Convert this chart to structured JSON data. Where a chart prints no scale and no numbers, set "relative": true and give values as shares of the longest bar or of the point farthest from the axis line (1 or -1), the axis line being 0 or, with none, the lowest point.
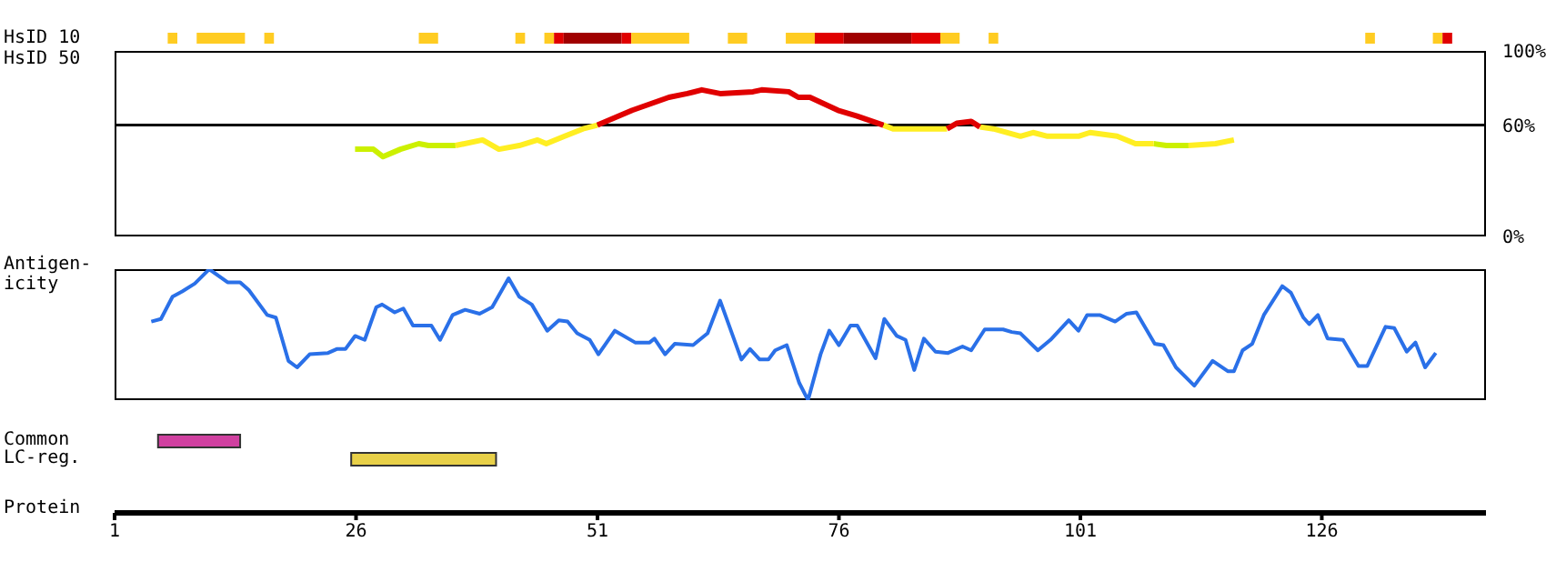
{
  "chart_data": [
    {
      "type": "line",
      "ylabel": "HsID 50",
      "xlim": [
        1,
        143
      ],
      "ylim": [
        0,
        100
      ],
      "yticks": [
        {
          "value": 0,
          "label": "0%"
        },
        {
          "value": 60,
          "label": "60%"
        },
        {
          "value": 100,
          "label": "100%"
        }
      ],
      "tick_labels": "y",
      "ref_lines": [
        {
          "axis": "y",
          "value": 60,
          "color": "#000000"
        }
      ],
      "x": [
        25.9,
        27.8,
        28.8,
        30.6,
        32.5,
        33.5,
        36.3,
        39.1,
        40.8,
        42.9,
        44.8,
        45.7,
        47.6,
        49.5,
        51,
        54.6,
        58.4,
        60.3,
        61.8,
        63.7,
        67.1,
        68,
        70.8,
        71.8,
        73,
        75.9,
        77.8,
        80.6,
        81.6,
        87.2,
        88.2,
        89.7,
        90.6,
        92,
        94.8,
        96.1,
        97.6,
        100.8,
        102,
        104.8,
        106.7,
        108.6,
        109.9,
        112.2,
        115,
        116.9
      ],
      "series": [
        {
          "color": "#ccf000",
          "values": [
            47,
            47,
            43,
            47,
            50,
            49,
            49,
            null,
            null,
            null,
            null,
            null,
            null,
            null,
            null,
            null,
            null,
            null,
            null,
            null,
            null,
            null,
            null,
            null,
            null,
            null,
            null,
            null,
            null,
            null,
            null,
            null,
            null,
            null,
            null,
            null,
            null,
            null,
            null,
            null,
            null,
            50,
            49,
            49,
            null,
            null
          ]
        },
        {
          "color": "#ffee22",
          "values": [
            null,
            null,
            null,
            null,
            null,
            null,
            49,
            52,
            47,
            49,
            52,
            50,
            54,
            58,
            60,
            null,
            null,
            null,
            null,
            null,
            null,
            null,
            null,
            null,
            null,
            null,
            null,
            60,
            58,
            58,
            null,
            null,
            59,
            58,
            54,
            56,
            54,
            54,
            56,
            54,
            50,
            50,
            null,
            49,
            50,
            52
          ]
        },
        {
          "color": "#e00000",
          "values": [
            null,
            null,
            null,
            null,
            null,
            null,
            null,
            null,
            null,
            null,
            null,
            null,
            null,
            null,
            60,
            68,
            75,
            77,
            79,
            77,
            78,
            79,
            78,
            75,
            75,
            68,
            65,
            60,
            null,
            58,
            61,
            62,
            59,
            null,
            null,
            null,
            null,
            null,
            null,
            null,
            null,
            null,
            null,
            null,
            null,
            null
          ]
        }
      ]
    },
    {
      "type": "line",
      "ylabel": "Antigen-\nicity",
      "relative": true,
      "xlim": [
        1,
        143
      ],
      "tick_labels": false,
      "x": [
        4.8,
        5.8,
        7.0,
        8.0,
        9.3,
        10.8,
        12.7,
        14.0,
        14.9,
        16.8,
        17.7,
        19.0,
        19.9,
        21.2,
        23.1,
        24.0,
        24.9,
        25.9,
        26.9,
        28.1,
        28.7,
        30.0,
        30.9,
        31.9,
        33.8,
        34.7,
        36.0,
        37.3,
        38.8,
        40.1,
        41.8,
        42.9,
        44.2,
        45.8,
        47.0,
        47.9,
        48.9,
        50.2,
        51.1,
        52.8,
        54.9,
        56.4,
        56.9,
        58.0,
        59.0,
        60.9,
        62.4,
        63.7,
        65.9,
        66.8,
        67.8,
        68.7,
        69.4,
        70.6,
        71.9,
        72.8,
        74.1,
        75.0,
        76.0,
        77.2,
        77.9,
        79.8,
        80.7,
        82.0,
        82.9,
        83.8,
        84.8,
        86.0,
        87.3,
        88.8,
        89.7,
        91.1,
        93.0,
        93.9,
        94.8,
        96.6,
        97.9,
        99.8,
        100.8,
        101.7,
        103.0,
        104.6,
        105.8,
        106.8,
        108.7,
        109.6,
        110.9,
        112.8,
        114.7,
        116.3,
        116.9,
        117.8,
        118.8,
        120.0,
        121.9,
        122.8,
        124.1,
        124.7,
        125.6,
        126.6,
        128.2,
        129.8,
        130.7,
        132.6,
        133.5,
        134.8,
        135.7,
        136.7,
        137.8
      ],
      "series": [
        {
          "color": "#2a70e8",
          "values": [
            0.6,
            0.62,
            0.79,
            0.83,
            0.89,
            1.0,
            0.9,
            0.9,
            0.84,
            0.65,
            0.63,
            0.3,
            0.25,
            0.35,
            0.36,
            0.39,
            0.39,
            0.49,
            0.46,
            0.71,
            0.73,
            0.67,
            0.7,
            0.57,
            0.57,
            0.46,
            0.65,
            0.69,
            0.66,
            0.71,
            0.93,
            0.79,
            0.73,
            0.53,
            0.61,
            0.6,
            0.51,
            0.46,
            0.35,
            0.53,
            0.44,
            0.44,
            0.47,
            0.35,
            0.43,
            0.42,
            0.51,
            0.76,
            0.31,
            0.39,
            0.31,
            0.31,
            0.38,
            0.42,
            0.13,
            0,
            0.35,
            0.53,
            0.42,
            0.57,
            0.57,
            0.32,
            0.62,
            0.49,
            0.46,
            0.23,
            0.47,
            0.37,
            0.36,
            0.41,
            0.38,
            0.54,
            0.54,
            0.52,
            0.51,
            0.38,
            0.46,
            0.61,
            0.53,
            0.65,
            0.65,
            0.6,
            0.66,
            0.67,
            0.43,
            0.42,
            0.25,
            0.11,
            0.3,
            0.22,
            0.22,
            0.38,
            0.43,
            0.65,
            0.87,
            0.82,
            0.63,
            0.58,
            0.65,
            0.47,
            0.46,
            0.26,
            0.26,
            0.56,
            0.55,
            0.37,
            0.44,
            0.25,
            0.36
          ]
        }
      ]
    },
    {
      "type": "bar",
      "orientation": "horizontal",
      "categories": [
        "HsID 10",
        "Common",
        "LC-reg."
      ],
      "xlabel": "Protein",
      "xlim": [
        1,
        143
      ],
      "xticks": [
        1,
        26,
        51,
        76,
        101,
        126
      ],
      "series": [
        {
          "color": "#ffcc22",
          "base": [
            6.5,
            null,
            null
          ],
          "values": [
            1,
            null,
            null
          ]
        },
        {
          "color": "#ffcc22",
          "base": [
            9.5,
            null,
            null
          ],
          "values": [
            5,
            null,
            null
          ]
        },
        {
          "color": "#ffcc22",
          "base": [
            16.5,
            null,
            null
          ],
          "values": [
            1,
            null,
            null
          ]
        },
        {
          "color": "#ffcc22",
          "base": [
            32.5,
            null,
            null
          ],
          "values": [
            2,
            null,
            null
          ]
        },
        {
          "color": "#ffcc22",
          "base": [
            42.5,
            null,
            null
          ],
          "values": [
            1,
            null,
            null
          ]
        },
        {
          "color": "#ffcc22",
          "base": [
            45.5,
            null,
            null
          ],
          "values": [
            1,
            null,
            null
          ]
        },
        {
          "color": "#e00000",
          "base": [
            46.5,
            null,
            null
          ],
          "values": [
            1,
            null,
            null
          ]
        },
        {
          "color": "#a00000",
          "base": [
            47.5,
            null,
            null
          ],
          "values": [
            6,
            null,
            null
          ]
        },
        {
          "color": "#e00000",
          "base": [
            53.5,
            null,
            null
          ],
          "values": [
            1,
            null,
            null
          ]
        },
        {
          "color": "#ffcc22",
          "base": [
            54.5,
            null,
            null
          ],
          "values": [
            6,
            null,
            null
          ]
        },
        {
          "color": "#ffcc22",
          "base": [
            64.5,
            null,
            null
          ],
          "values": [
            2,
            null,
            null
          ]
        },
        {
          "color": "#ffcc22",
          "base": [
            70.5,
            null,
            null
          ],
          "values": [
            3,
            null,
            null
          ]
        },
        {
          "color": "#e00000",
          "base": [
            73.5,
            null,
            null
          ],
          "values": [
            3,
            null,
            null
          ]
        },
        {
          "color": "#a00000",
          "base": [
            76.5,
            null,
            null
          ],
          "values": [
            7,
            null,
            null
          ]
        },
        {
          "color": "#e00000",
          "base": [
            83.5,
            null,
            null
          ],
          "values": [
            3,
            null,
            null
          ]
        },
        {
          "color": "#ffcc22",
          "base": [
            86.5,
            null,
            null
          ],
          "values": [
            2,
            null,
            null
          ]
        },
        {
          "color": "#ffcc22",
          "base": [
            91.5,
            null,
            null
          ],
          "values": [
            1,
            null,
            null
          ]
        },
        {
          "color": "#ffcc22",
          "base": [
            130.5,
            null,
            null
          ],
          "values": [
            1,
            null,
            null
          ]
        },
        {
          "color": "#ffcc22",
          "base": [
            137.5,
            null,
            null
          ],
          "values": [
            1,
            null,
            null
          ]
        },
        {
          "color": "#e00000",
          "base": [
            138.5,
            null,
            null
          ],
          "values": [
            1,
            null,
            null
          ]
        },
        {
          "colors": [
            null,
            "#d040a0",
            "#e8d048"
          ],
          "base": [
            null,
            5.5,
            25.5
          ],
          "values": [
            null,
            8.5,
            15
          ]
        }
      ]
    }
  ]
}
